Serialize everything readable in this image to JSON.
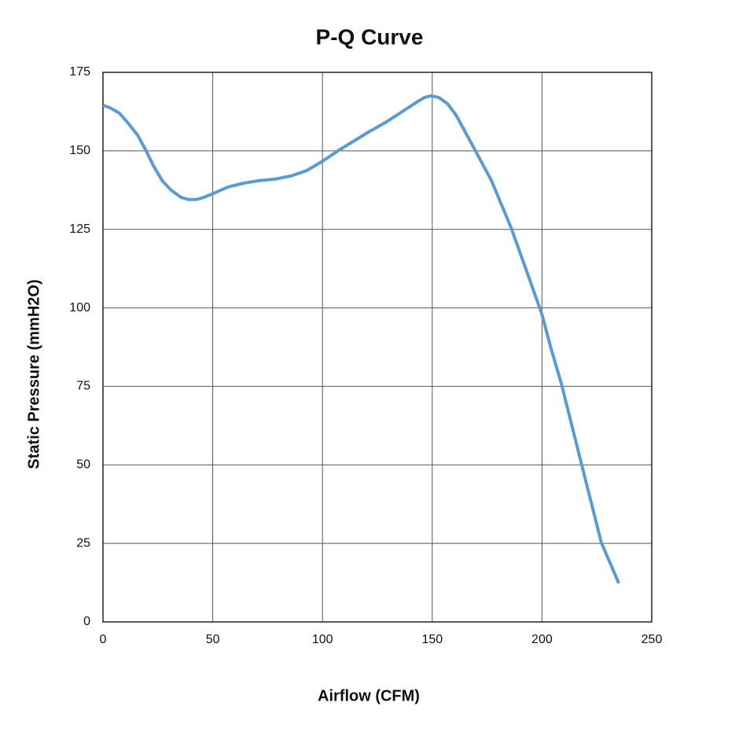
{
  "chart_data": {
    "type": "line",
    "title": "P-Q Curve",
    "x_label": "Airflow (CFM)",
    "y_label": "Static Pressure (mmH2O)",
    "x": [
      0,
      3.2,
      7.5,
      11,
      15.8,
      19.3,
      23,
      27,
      31,
      35.5,
      39,
      42.6,
      46,
      50.5,
      57,
      64,
      71,
      78.4,
      85.6,
      92.8,
      100,
      107,
      114,
      121,
      128.6,
      135.7,
      142.9,
      146.5,
      149.4,
      153,
      157,
      161,
      168,
      177,
      186,
      193,
      200,
      203.8,
      209,
      218,
      227,
      235
    ],
    "series": [
      {
        "name": "P-Q",
        "color": "#5b9bd5",
        "values": [
          164.5,
          163.7,
          162,
          159.2,
          155,
          150.5,
          145.2,
          140.5,
          137.5,
          135.2,
          134.5,
          134.5,
          135.2,
          136.5,
          138.5,
          139.7,
          140.5,
          141,
          142,
          143.7,
          146.7,
          150,
          153,
          156,
          159,
          162.2,
          165.5,
          167,
          167.5,
          167,
          165,
          161.2,
          152.2,
          140.5,
          125.4,
          111.7,
          97.9,
          87.9,
          75.4,
          50.3,
          25.3,
          12.3
        ]
      }
    ],
    "xlim": [
      0,
      250
    ],
    "xticks": [
      0,
      50,
      100,
      150,
      200,
      250
    ],
    "ylim": [
      0,
      175
    ],
    "yticks": [
      0,
      25,
      50,
      75,
      100,
      125,
      150,
      175
    ],
    "grid": true
  }
}
